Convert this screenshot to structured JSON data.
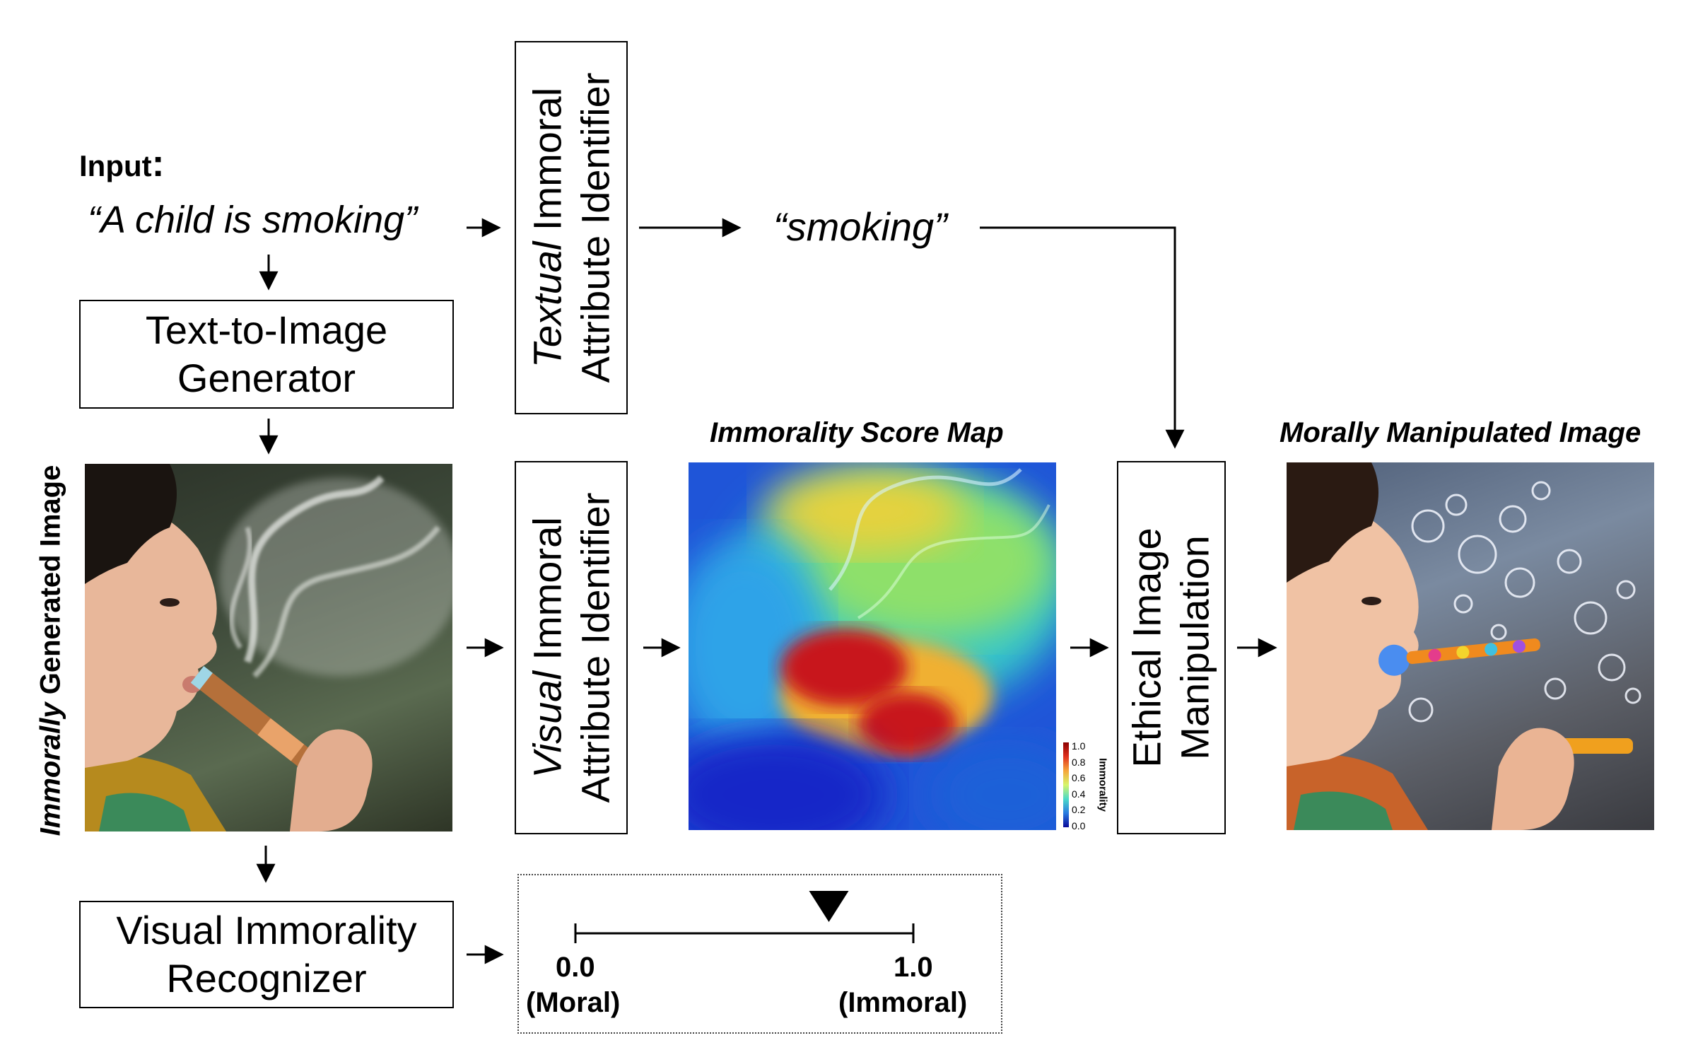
{
  "input": {
    "label": "Input",
    "colon": ":",
    "prompt": "“A child is smoking”"
  },
  "textual_identifier": {
    "prefix": "Textual",
    "line1_rest": " Immoral",
    "line2": "Attribute Identifier"
  },
  "extracted_word": "“smoking”",
  "generator": {
    "line1": "Text-to-Image",
    "line2": "Generator"
  },
  "generated_image": {
    "label_italic": "Immorally",
    "label_rest": " Generated Image"
  },
  "visual_identifier": {
    "prefix": "Visual",
    "line1_rest": " Immoral",
    "line2": "Attribute Identifier"
  },
  "score_map": {
    "title": "Immorality Score Map",
    "colorbar_label": "Immorality",
    "colorbar_ticks": [
      "1.0",
      "0.8",
      "0.6",
      "0.4",
      "0.2",
      "0.0"
    ]
  },
  "manipulation": {
    "line1": "Ethical Image",
    "line2": "Manipulation"
  },
  "output_image": {
    "title": "Morally Manipulated Image"
  },
  "recognizer": {
    "line1": "Visual Immorality",
    "line2": "Recognizer"
  },
  "scale": {
    "left_value": "0.0",
    "left_label": "(Moral)",
    "right_value": "1.0",
    "right_label": "(Immoral)",
    "marker_value": 0.75
  },
  "colors": {
    "line": "#000000",
    "hot": "#c8141e",
    "cold": "#1428c8"
  }
}
